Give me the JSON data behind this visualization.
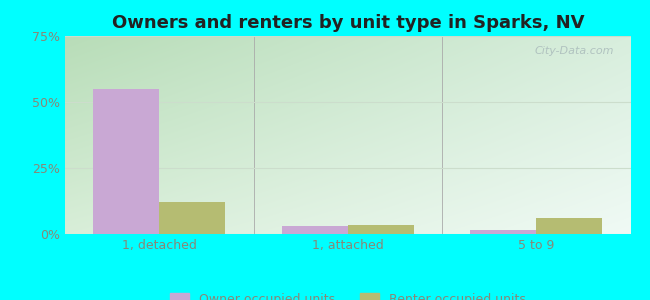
{
  "title": "Owners and renters by unit type in Sparks, NV",
  "categories": [
    "1, detached",
    "1, attached",
    "5 to 9"
  ],
  "owner_values": [
    55,
    3,
    1.5
  ],
  "renter_values": [
    12,
    3.5,
    6
  ],
  "owner_color": "#c9a8d4",
  "renter_color": "#b5bc72",
  "ylim": [
    0,
    75
  ],
  "yticks": [
    0,
    25,
    50,
    75
  ],
  "ytick_labels": [
    "0%",
    "25%",
    "50%",
    "75%"
  ],
  "bar_width": 0.35,
  "outer_bg": "#00ffff",
  "legend_owner": "Owner occupied units",
  "legend_renter": "Renter occupied units",
  "watermark": "City-Data.com",
  "title_fontsize": 13,
  "label_fontsize": 9,
  "tick_fontsize": 9,
  "grad_topleft": "#b8ddb8",
  "grad_topright": "#d8eedd",
  "grad_bottomleft": "#d8eed8",
  "grad_bottomright": "#f0faf5",
  "separator_color": "#aaaaaa",
  "grid_color": "#ccddcc",
  "tick_color": "#888877",
  "watermark_color": "#aabbbb"
}
